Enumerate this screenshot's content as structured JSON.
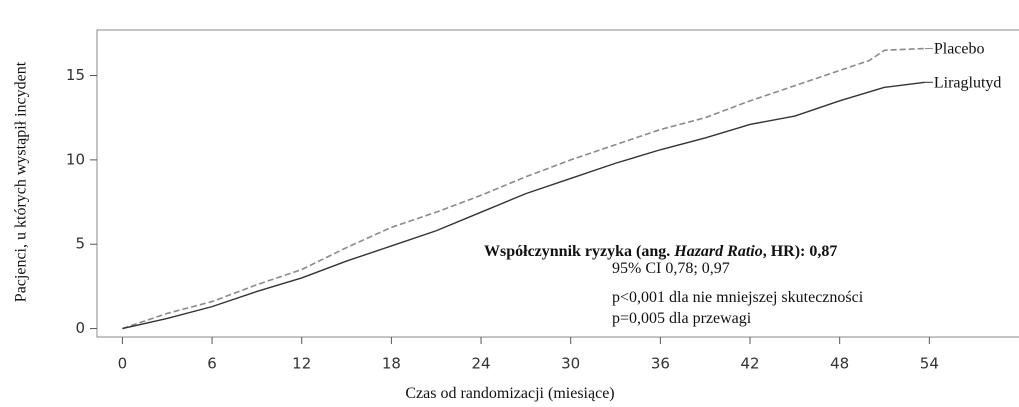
{
  "chart_data": {
    "type": "line",
    "ylabel": "Pacjenci, u których wystąpił incydent",
    "xlabel": "Czas od randomizacji (miesiące)",
    "xlim": [
      -1.7,
      60
    ],
    "ylim": [
      -0.5,
      17.7
    ],
    "xticks": [
      0,
      6,
      12,
      18,
      24,
      30,
      36,
      42,
      48,
      54
    ],
    "yticks": [
      0,
      5,
      10,
      15
    ],
    "series": [
      {
        "name": "Placebo",
        "color": "#8a8a8a",
        "dash": true,
        "x": [
          0,
          1,
          3,
          6,
          9,
          12,
          15,
          18,
          21,
          24,
          27,
          30,
          33,
          36,
          39,
          42,
          45,
          48,
          50,
          51,
          53.7
        ],
        "values": [
          0,
          0.3,
          0.9,
          1.6,
          2.6,
          3.5,
          4.8,
          6.0,
          6.9,
          7.9,
          9.0,
          10.0,
          10.9,
          11.8,
          12.5,
          13.5,
          14.4,
          15.3,
          15.9,
          16.5,
          16.6
        ]
      },
      {
        "name": "Liraglutyd",
        "color": "#333333",
        "dash": false,
        "x": [
          0,
          1,
          3,
          6,
          9,
          12,
          15,
          18,
          21,
          24,
          27,
          30,
          33,
          36,
          39,
          42,
          45,
          48,
          51,
          53.7
        ],
        "values": [
          0,
          0.2,
          0.6,
          1.3,
          2.2,
          3.0,
          4.0,
          4.9,
          5.8,
          6.9,
          8.0,
          8.9,
          9.8,
          10.6,
          11.3,
          12.1,
          12.6,
          13.5,
          14.3,
          14.6
        ]
      }
    ],
    "annotation": {
      "title": [
        "Współczynnik ryzyka (ang. ",
        "Hazard Ratio",
        ", HR): 0,87"
      ],
      "lines": [
        "95% CI 0,78; 0,97",
        "p<0,001 dla nie mniejszej skuteczności",
        "p=0,005 dla przewagi"
      ]
    }
  }
}
